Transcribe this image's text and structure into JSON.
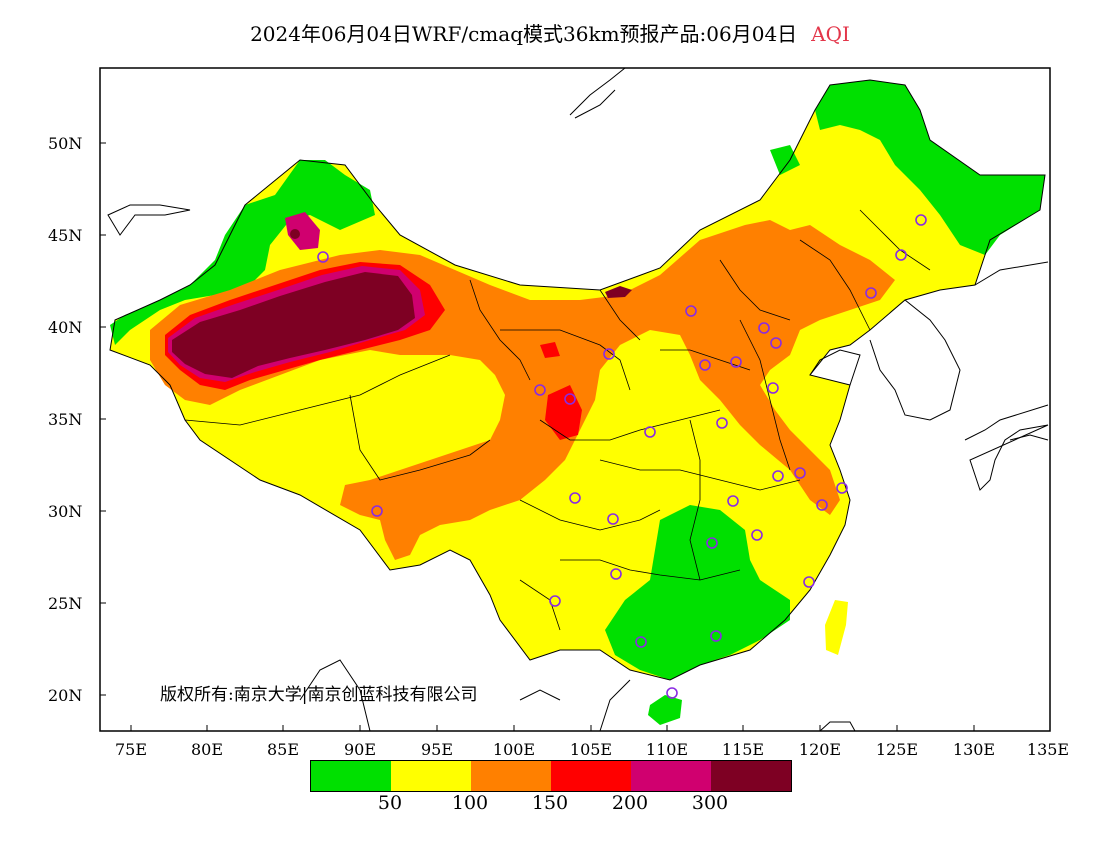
{
  "title": {
    "main": "2024年06月04日WRF/cmaq模式36km预报产品:06月04日",
    "variable": "AQI"
  },
  "axes": {
    "lat_labels": [
      "50N",
      "45N",
      "40N",
      "35N",
      "30N",
      "25N",
      "20N"
    ],
    "lon_labels": [
      "75E",
      "80E",
      "85E",
      "90E",
      "95E",
      "100E",
      "105E",
      "110E",
      "115E",
      "120E",
      "125E",
      "130E",
      "135E"
    ]
  },
  "legend": {
    "colors": [
      "#00e000",
      "#ffff00",
      "#ff8000",
      "#ff0000",
      "#d0006f",
      "#7e0023"
    ],
    "thresholds": [
      "50",
      "100",
      "150",
      "200",
      "300"
    ]
  },
  "copyright": "版权所有:南京大学|南京创蓝科技有限公司",
  "colors": {
    "green": "#00e000",
    "yellow": "#ffff00",
    "orange": "#ff8000",
    "red": "#ff0000",
    "magenta": "#d0006f",
    "maroon": "#7e0023",
    "station_marker": "#8a2be2"
  }
}
